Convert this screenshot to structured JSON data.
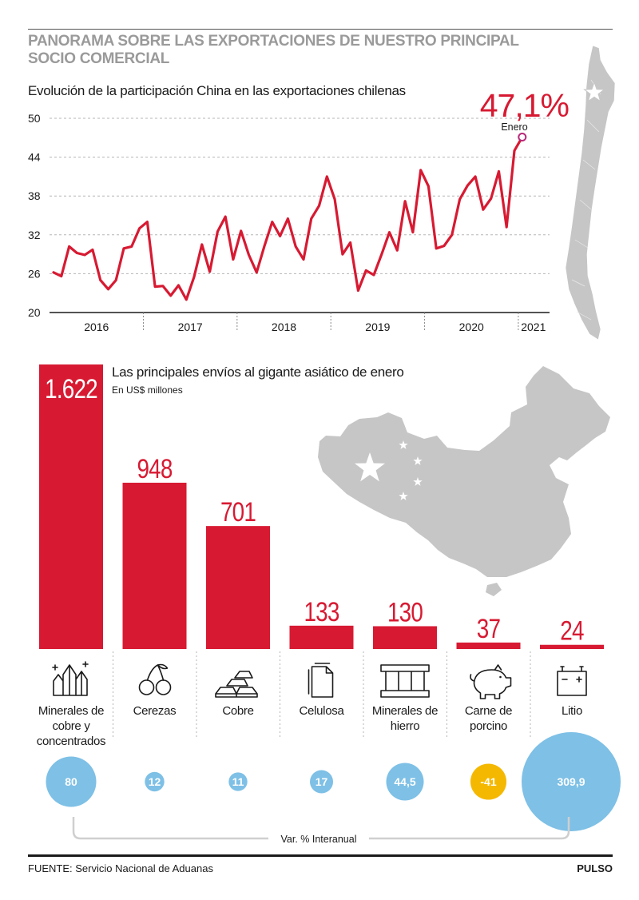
{
  "header": {
    "title": "PANORAMA SOBRE LAS EXPORTACIONES DE NUESTRO PRINCIPAL SOCIO COMERCIAL"
  },
  "line_chart": {
    "subtitle": "Evolución de la participación China en las exportaciones chilenas",
    "highlight_value": "47,1%",
    "highlight_label": "Enero"
  },
  "bar_chart": {
    "subtitle": "Las principales envíos al gigante asiático de enero",
    "unit": "En US$ millones",
    "var_label": "Var. % Interanual"
  },
  "footer": {
    "source": "FUENTE: Servicio Nacional de Aduanas",
    "brand": "PULSO"
  },
  "colors": {
    "accent_red": "#d71a32",
    "bubble_blue": "#7ec0e6",
    "bubble_yellow": "#f5b800",
    "map_gray": "#c6c6c6"
  },
  "chart_data": [
    {
      "type": "line",
      "title": "Evolución de la participación China en las exportaciones chilenas",
      "ylim": [
        20,
        50
      ],
      "yticks": [
        20,
        26,
        32,
        38,
        44,
        50
      ],
      "year_labels": [
        "2016",
        "2017",
        "2018",
        "2019",
        "2020",
        "2021"
      ],
      "annotation": {
        "text": "47,1%",
        "label": "Enero",
        "value": 47.1
      },
      "grid": "horizontal dashed",
      "x": [
        "2016-01",
        "2016-02",
        "2016-03",
        "2016-04",
        "2016-05",
        "2016-06",
        "2016-07",
        "2016-08",
        "2016-09",
        "2016-10",
        "2016-11",
        "2016-12",
        "2017-01",
        "2017-02",
        "2017-03",
        "2017-04",
        "2017-05",
        "2017-06",
        "2017-07",
        "2017-08",
        "2017-09",
        "2017-10",
        "2017-11",
        "2017-12",
        "2018-01",
        "2018-02",
        "2018-03",
        "2018-04",
        "2018-05",
        "2018-06",
        "2018-07",
        "2018-08",
        "2018-09",
        "2018-10",
        "2018-11",
        "2018-12",
        "2019-01",
        "2019-02",
        "2019-03",
        "2019-04",
        "2019-05",
        "2019-06",
        "2019-07",
        "2019-08",
        "2019-09",
        "2019-10",
        "2019-11",
        "2019-12",
        "2020-01",
        "2020-02",
        "2020-03",
        "2020-04",
        "2020-05",
        "2020-06",
        "2020-07",
        "2020-08",
        "2020-09",
        "2020-10",
        "2020-11",
        "2020-12",
        "2021-01"
      ],
      "values": [
        26.2,
        25.6,
        30.2,
        29.2,
        28.9,
        29.7,
        25.0,
        23.6,
        25.0,
        29.9,
        30.2,
        33.0,
        34.0,
        24.0,
        24.1,
        22.6,
        24.2,
        22.0,
        25.5,
        30.5,
        26.3,
        32.5,
        34.8,
        28.2,
        32.6,
        28.9,
        26.2,
        30.3,
        34.0,
        31.8,
        34.5,
        30.2,
        28.2,
        34.5,
        36.5,
        41.0,
        37.5,
        29.0,
        30.8,
        23.4,
        26.5,
        25.8,
        29.0,
        32.4,
        29.6,
        37.2,
        32.4,
        42.0,
        39.5,
        29.9,
        30.3,
        32.0,
        37.5,
        39.6,
        41.0,
        35.9,
        37.6,
        41.8,
        33.2,
        45.0,
        47.1
      ]
    },
    {
      "type": "bar",
      "title": "Las principales envíos al gigante asiático de enero",
      "ylabel": "En US$ millones",
      "categories": [
        "Minerales de cobre y concentrados",
        "Cerezas",
        "Cobre",
        "Celulosa",
        "Minerales de hierro",
        "Carne de porcino",
        "Litio"
      ],
      "value_labels": [
        "1.622",
        "948",
        "701",
        "133",
        "130",
        "37",
        "24"
      ],
      "values": [
        1622,
        948,
        701,
        133,
        130,
        37,
        24
      ],
      "secondary_label": "Var. % Interanual",
      "secondary_labels": [
        "80",
        "12",
        "11",
        "17",
        "44,5",
        "-41",
        "309,9"
      ],
      "secondary_values": [
        80,
        12,
        11,
        17,
        44.5,
        -41,
        309.9
      ],
      "icons": [
        "crystals-icon",
        "cherries-icon",
        "gold-bars-icon",
        "paper-sheets-icon",
        "iron-beam-icon",
        "pig-icon",
        "battery-icon"
      ]
    }
  ]
}
